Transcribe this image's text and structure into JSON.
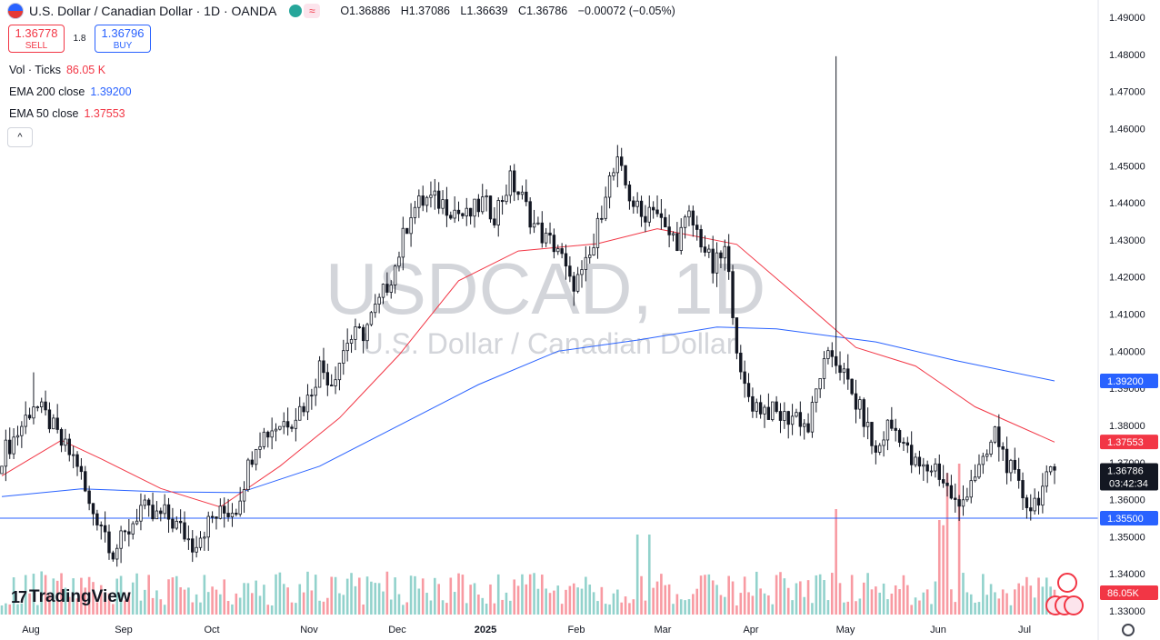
{
  "header": {
    "symbol_title": "U.S. Dollar / Canadian Dollar · 1D · OANDA",
    "ohlc": [
      {
        "k": "O",
        "v": "1.36886"
      },
      {
        "k": "H",
        "v": "1.37086"
      },
      {
        "k": "L",
        "v": "1.36639"
      },
      {
        "k": "C",
        "v": "1.36786"
      }
    ],
    "change": "−0.00072 (−0.05%)",
    "compare_glyph": "≈"
  },
  "trade": {
    "sell_price": "1.36778",
    "sell_label": "SELL",
    "spread": "1.8",
    "buy_price": "1.36796",
    "buy_label": "BUY"
  },
  "indicators": {
    "vol_label": "Vol · Ticks",
    "vol_value": "86.05 K",
    "ema200_label": "EMA 200 close",
    "ema200_value": "1.39200",
    "ema50_label": "EMA 50 close",
    "ema50_value": "1.37553",
    "collapse_glyph": "^"
  },
  "logo": {
    "text": "TradingView",
    "mark": "17"
  },
  "colors": {
    "up": "#26a69a",
    "down": "#f23645",
    "ema200": "#2962ff",
    "ema50": "#f23645",
    "hline": "#2962ff",
    "watermark": "#c9cbd1"
  },
  "chart_data": {
    "type": "candlestick",
    "symbol": "USDCAD",
    "watermark": "USDCAD, 1D",
    "watermark_sub": "U.S. Dollar / Canadian Dollar",
    "interval": "1D",
    "ylim": [
      1.325,
      1.495
    ],
    "y_ticks": [
      "1.33000",
      "1.34000",
      "1.35000",
      "1.36000",
      "1.37000",
      "1.38000",
      "1.39000",
      "1.40000",
      "1.41000",
      "1.42000",
      "1.43000",
      "1.44000",
      "1.45000",
      "1.46000",
      "1.47000",
      "1.48000",
      "1.49000"
    ],
    "x_ticks": [
      "Aug",
      "Sep",
      "Oct",
      "Nov",
      "Dec",
      "2025",
      "Feb",
      "Mar",
      "Apr",
      "May",
      "Jun",
      "Jul"
    ],
    "price_labels": [
      {
        "value": 1.392,
        "text": "1.39200",
        "color": "#2962ff"
      },
      {
        "value": 1.37553,
        "text": "1.37553",
        "color": "#f23645"
      },
      {
        "value": 1.36786,
        "text": "1.36786",
        "sub": "03:42:34",
        "color": "#131722"
      },
      {
        "value": 1.355,
        "text": "1.35500",
        "color": "#2962ff"
      }
    ],
    "volume_label": {
      "text": "86.05K",
      "color": "#f23645"
    },
    "horizontal_line": 1.355,
    "series": [
      {
        "name": "USDCAD",
        "kind": "candles",
        "path": [
          [
            0,
            1.372
          ],
          [
            4,
            1.378
          ],
          [
            8,
            1.386
          ],
          [
            12,
            1.381
          ],
          [
            15,
            1.375
          ],
          [
            19,
            1.37
          ],
          [
            22,
            1.358
          ],
          [
            25,
            1.354
          ],
          [
            28,
            1.346
          ],
          [
            31,
            1.35
          ],
          [
            35,
            1.358
          ],
          [
            38,
            1.355
          ],
          [
            41,
            1.356
          ],
          [
            45,
            1.352
          ],
          [
            48,
            1.348
          ],
          [
            53,
            1.355
          ],
          [
            59,
            1.358
          ],
          [
            64,
            1.376
          ],
          [
            69,
            1.38
          ],
          [
            73,
            1.382
          ],
          [
            77,
            1.387
          ],
          [
            80,
            1.396
          ],
          [
            83,
            1.392
          ],
          [
            87,
            1.403
          ],
          [
            91,
            1.405
          ],
          [
            95,
            1.413
          ],
          [
            99,
            1.423
          ],
          [
            103,
            1.438
          ],
          [
            107,
            1.441
          ],
          [
            111,
            1.44
          ],
          [
            114,
            1.438
          ],
          [
            117,
            1.436
          ],
          [
            121,
            1.44
          ],
          [
            124,
            1.437
          ],
          [
            128,
            1.446
          ],
          [
            131,
            1.441
          ],
          [
            134,
            1.434
          ],
          [
            137,
            1.43
          ],
          [
            140,
            1.428
          ],
          [
            143,
            1.418
          ],
          [
            146,
            1.42
          ],
          [
            149,
            1.428
          ],
          [
            152,
            1.444
          ],
          [
            155,
            1.45
          ],
          [
            158,
            1.442
          ],
          [
            161,
            1.436
          ],
          [
            164,
            1.44
          ],
          [
            167,
            1.432
          ],
          [
            170,
            1.43
          ],
          [
            173,
            1.436
          ],
          [
            176,
            1.43
          ],
          [
            179,
            1.422
          ],
          [
            182,
            1.427
          ],
          [
            184,
            1.412
          ],
          [
            186,
            1.392
          ],
          [
            189,
            1.386
          ],
          [
            193,
            1.384
          ],
          [
            197,
            1.382
          ],
          [
            200,
            1.383
          ],
          [
            203,
            1.379
          ],
          [
            206,
            1.394
          ],
          [
            209,
            1.399
          ],
          [
            211,
            1.396
          ],
          [
            214,
            1.388
          ],
          [
            217,
            1.382
          ],
          [
            220,
            1.372
          ],
          [
            223,
            1.38
          ],
          [
            226,
            1.378
          ],
          [
            229,
            1.37
          ],
          [
            232,
            1.368
          ],
          [
            235,
            1.369
          ],
          [
            238,
            1.363
          ],
          [
            241,
            1.357
          ],
          [
            244,
            1.366
          ],
          [
            247,
            1.369
          ],
          [
            250,
            1.378
          ],
          [
            253,
            1.37
          ],
          [
            256,
            1.363
          ],
          [
            259,
            1.358
          ],
          [
            262,
            1.363
          ],
          [
            265,
            1.368
          ]
        ]
      },
      {
        "name": "EMA 200 close",
        "kind": "line",
        "color": "#2962ff",
        "points": [
          [
            0,
            1.3608
          ],
          [
            20,
            1.3629
          ],
          [
            40,
            1.3621
          ],
          [
            60,
            1.3619
          ],
          [
            80,
            1.369
          ],
          [
            100,
            1.38
          ],
          [
            120,
            1.391
          ],
          [
            140,
            1.4
          ],
          [
            160,
            1.403
          ],
          [
            180,
            1.4065
          ],
          [
            195,
            1.406
          ],
          [
            220,
            1.4025
          ],
          [
            240,
            1.3975
          ],
          [
            265,
            1.392
          ]
        ]
      },
      {
        "name": "EMA 50 close",
        "kind": "line",
        "color": "#f23645",
        "points": [
          [
            0,
            1.3664
          ],
          [
            15,
            1.376
          ],
          [
            25,
            1.371
          ],
          [
            40,
            1.363
          ],
          [
            55,
            1.358
          ],
          [
            70,
            1.369
          ],
          [
            85,
            1.382
          ],
          [
            100,
            1.399
          ],
          [
            115,
            1.419
          ],
          [
            130,
            1.427
          ],
          [
            150,
            1.429
          ],
          [
            165,
            1.433
          ],
          [
            185,
            1.4288
          ],
          [
            200,
            1.415
          ],
          [
            215,
            1.401
          ],
          [
            230,
            1.396
          ],
          [
            245,
            1.385
          ],
          [
            265,
            1.3755
          ]
        ]
      }
    ]
  }
}
